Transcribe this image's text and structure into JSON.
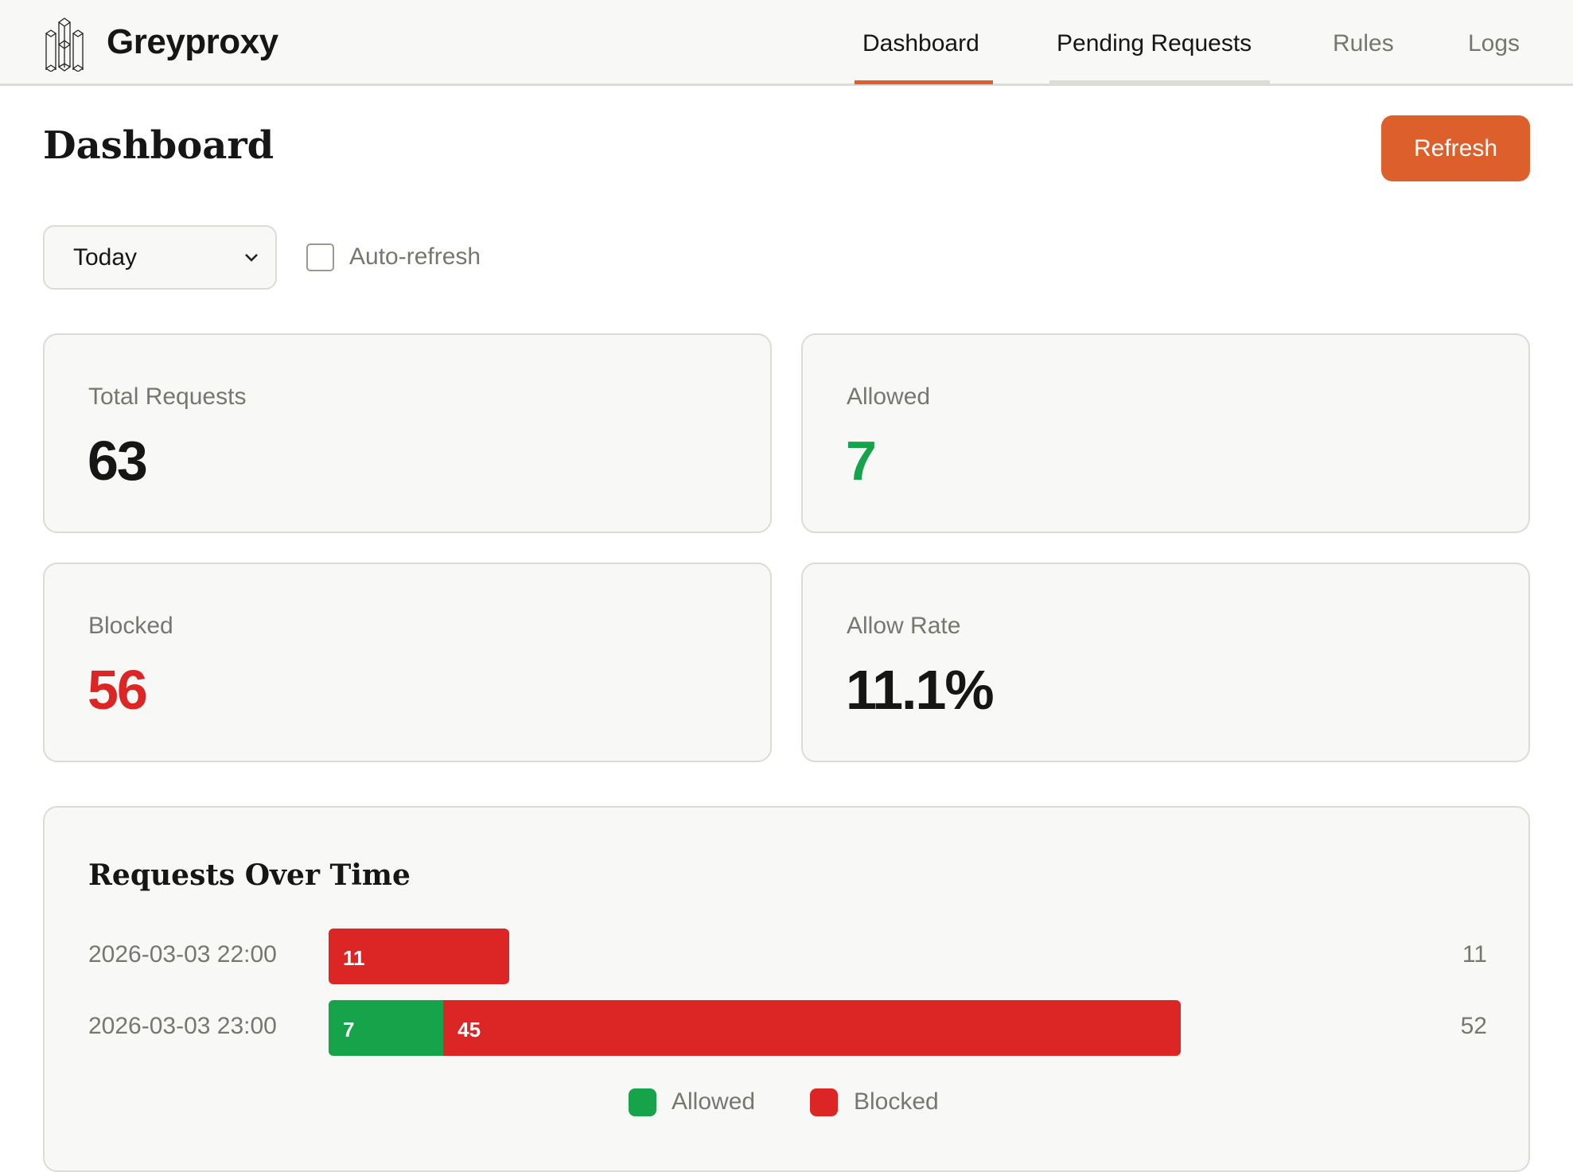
{
  "app": {
    "name": "Greyproxy",
    "logo_icon": "crystal-columns-logo"
  },
  "nav": [
    {
      "label": "Dashboard",
      "active": true
    },
    {
      "label": "Pending Requests"
    },
    {
      "label": "Rules"
    },
    {
      "label": "Logs"
    }
  ],
  "page": {
    "title": "Dashboard",
    "refresh_label": "Refresh"
  },
  "filters": {
    "range": "Today",
    "auto_refresh_label": "Auto-refresh",
    "auto_refresh_checked": false
  },
  "stats": [
    {
      "label": "Total Requests",
      "value": "63",
      "color": "#161616"
    },
    {
      "label": "Allowed",
      "value": "7",
      "color": "#16a34a"
    },
    {
      "label": "Blocked",
      "value": "56",
      "color": "#dc2626"
    },
    {
      "label": "Allow Rate",
      "value": "11.1%",
      "color": "#161616"
    }
  ],
  "colors": {
    "accent": "#dc5f2c",
    "allowed": "#16a34a",
    "blocked": "#dc2626"
  },
  "chart_data": {
    "type": "bar",
    "orientation": "horizontal",
    "stacked": true,
    "title": "Requests Over Time",
    "categories": [
      "2026-03-03 22:00",
      "2026-03-03 23:00"
    ],
    "series": [
      {
        "name": "Allowed",
        "values": [
          0,
          7
        ]
      },
      {
        "name": "Blocked",
        "values": [
          11,
          45
        ]
      }
    ],
    "totals": [
      "11",
      "52"
    ],
    "legend": "bottom-center",
    "segment_labels": [
      [
        "",
        "11"
      ],
      [
        "7",
        "45"
      ]
    ]
  }
}
